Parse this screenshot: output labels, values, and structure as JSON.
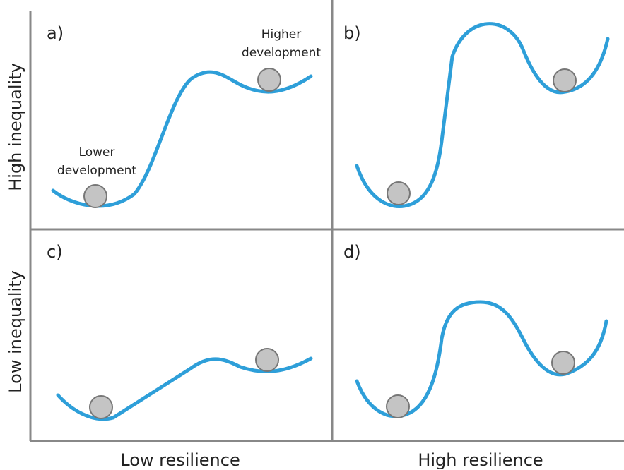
{
  "y_axis": {
    "top": "High inequality",
    "bottom": "Low inequality"
  },
  "x_axis": {
    "left": "Low resilience",
    "right": "High resilience"
  },
  "panels": [
    {
      "label": "a)"
    },
    {
      "label": "b)"
    },
    {
      "label": "c)"
    },
    {
      "label": "d)"
    }
  ],
  "annotations": {
    "higher": [
      "Higher",
      "development"
    ],
    "lower": [
      "Lower",
      "development"
    ]
  }
}
